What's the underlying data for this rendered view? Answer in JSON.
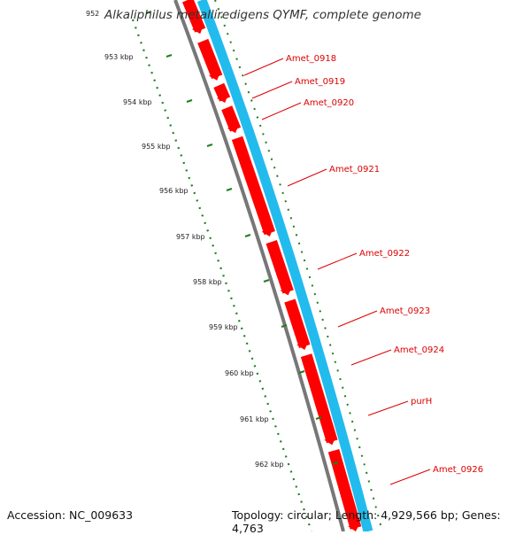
{
  "title": "Alkaliphilus metalliredigens QYMF, complete genome",
  "accession": "Accession: NC_009633",
  "summary": "Topology: circular; Length: 4,929,566 bp; Genes: 4,763",
  "scale_labels": [
    "952",
    "953 kbp",
    "954 kbp",
    "955 kbp",
    "956 kbp",
    "957 kbp",
    "958 kbp",
    "959 kbp",
    "960 kbp",
    "961 kbp",
    "962 kbp"
  ],
  "genes": [
    "Amet_0918",
    "Amet_0919",
    "Amet_0920",
    "Amet_0921",
    "Amet_0922",
    "Amet_0923",
    "Amet_0924",
    "purH",
    "Amet_0926"
  ],
  "colors": {
    "forward_cds": "#ff0000",
    "forward_strand": "#22bbee",
    "backbone": "#777777",
    "scale": "#1f7f1f",
    "label": "#dd0000"
  }
}
